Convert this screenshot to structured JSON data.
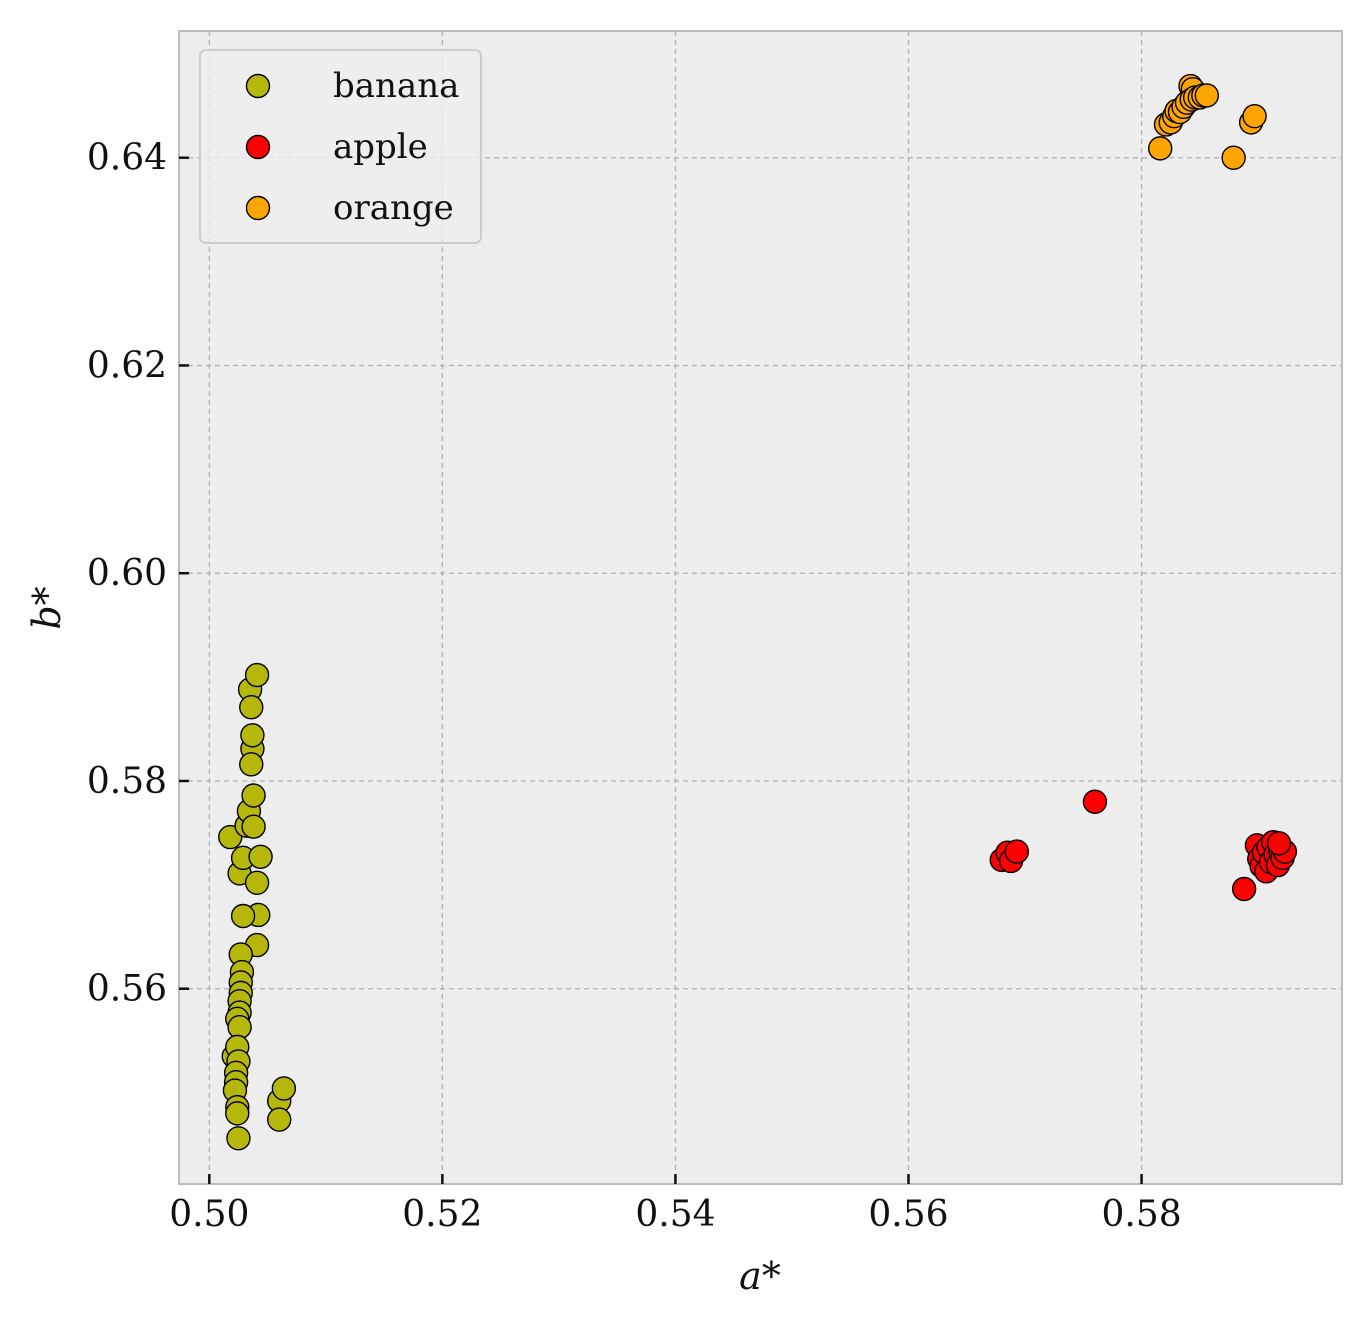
{
  "chart_data": {
    "type": "scatter",
    "title": "",
    "xlabel": "a*",
    "ylabel": "b*",
    "xlim": [
      0.4974,
      0.5972
    ],
    "ylim": [
      0.5412,
      0.6522
    ],
    "x_ticks": [
      0.5,
      0.52,
      0.54,
      0.56,
      0.58
    ],
    "x_tick_labels": [
      "0.50",
      "0.52",
      "0.54",
      "0.56",
      "0.58"
    ],
    "y_ticks": [
      0.56,
      0.58,
      0.6,
      0.62,
      0.64
    ],
    "y_tick_labels": [
      "0.56",
      "0.58",
      "0.60",
      "0.62",
      "0.64"
    ],
    "grid": true,
    "grid_style": "dashed",
    "legend_position": "top-left",
    "background_color": "#ededed",
    "marker": "circle",
    "marker_edge_color": "#000000",
    "series": [
      {
        "name": "banana",
        "color": "#b5b80a",
        "points": [
          [
            0.5018,
            0.5746
          ],
          [
            0.5026,
            0.5711
          ],
          [
            0.5029,
            0.5726
          ],
          [
            0.5032,
            0.5757
          ],
          [
            0.5034,
            0.5771
          ],
          [
            0.5035,
            0.5888
          ],
          [
            0.5036,
            0.5871
          ],
          [
            0.5037,
            0.5831
          ],
          [
            0.5036,
            0.5816
          ],
          [
            0.5037,
            0.5844
          ],
          [
            0.5038,
            0.5786
          ],
          [
            0.5038,
            0.5756
          ],
          [
            0.5041,
            0.5702
          ],
          [
            0.5041,
            0.5902
          ],
          [
            0.5044,
            0.5727
          ],
          [
            0.5042,
            0.5671
          ],
          [
            0.5041,
            0.5642
          ],
          [
            0.5029,
            0.567
          ],
          [
            0.5027,
            0.5633
          ],
          [
            0.5028,
            0.5616
          ],
          [
            0.5027,
            0.5606
          ],
          [
            0.5027,
            0.5596
          ],
          [
            0.5026,
            0.5588
          ],
          [
            0.5026,
            0.5577
          ],
          [
            0.5024,
            0.5571
          ],
          [
            0.5026,
            0.5563
          ],
          [
            0.5021,
            0.5535
          ],
          [
            0.5024,
            0.5544
          ],
          [
            0.5025,
            0.553
          ],
          [
            0.5023,
            0.5519
          ],
          [
            0.5023,
            0.551
          ],
          [
            0.5022,
            0.5502
          ],
          [
            0.5024,
            0.5486
          ],
          [
            0.5024,
            0.548
          ],
          [
            0.5025,
            0.5456
          ],
          [
            0.506,
            0.5492
          ],
          [
            0.506,
            0.5474
          ],
          [
            0.5064,
            0.5504
          ]
        ]
      },
      {
        "name": "apple",
        "color": "#ff0000",
        "points": [
          [
            0.568,
            0.5724
          ],
          [
            0.5685,
            0.5731
          ],
          [
            0.5688,
            0.5723
          ],
          [
            0.5693,
            0.5732
          ],
          [
            0.576,
            0.578
          ],
          [
            0.5888,
            0.5696
          ],
          [
            0.5899,
            0.5738
          ],
          [
            0.5901,
            0.5725
          ],
          [
            0.5903,
            0.5718
          ],
          [
            0.5905,
            0.5731
          ],
          [
            0.5907,
            0.5713
          ],
          [
            0.5909,
            0.5736
          ],
          [
            0.5911,
            0.5722
          ],
          [
            0.5913,
            0.5741
          ],
          [
            0.5915,
            0.5729
          ],
          [
            0.5917,
            0.5719
          ],
          [
            0.5919,
            0.5733
          ],
          [
            0.5921,
            0.5726
          ],
          [
            0.5923,
            0.5732
          ],
          [
            0.5918,
            0.574
          ]
        ]
      },
      {
        "name": "orange",
        "color": "#ffa500",
        "points": [
          [
            0.5816,
            0.6409
          ],
          [
            0.5821,
            0.6432
          ],
          [
            0.5825,
            0.6434
          ],
          [
            0.5828,
            0.644
          ],
          [
            0.583,
            0.6445
          ],
          [
            0.5833,
            0.6444
          ],
          [
            0.5836,
            0.6449
          ],
          [
            0.5839,
            0.6453
          ],
          [
            0.5842,
            0.6469
          ],
          [
            0.5844,
            0.6466
          ],
          [
            0.5843,
            0.6456
          ],
          [
            0.5846,
            0.6458
          ],
          [
            0.585,
            0.6458
          ],
          [
            0.5853,
            0.646
          ],
          [
            0.5856,
            0.646
          ],
          [
            0.5879,
            0.64
          ],
          [
            0.5894,
            0.6434
          ],
          [
            0.5897,
            0.644
          ]
        ]
      }
    ]
  }
}
